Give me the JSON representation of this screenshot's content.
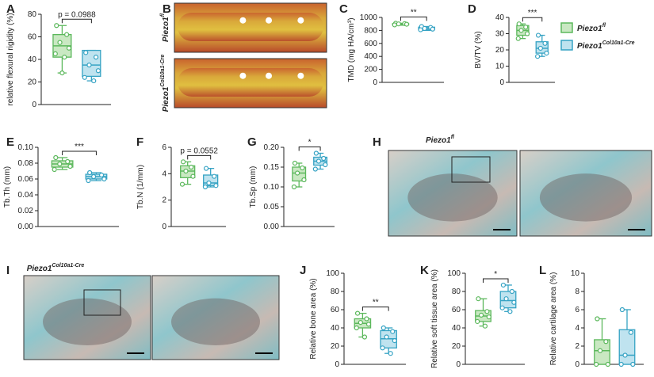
{
  "chart_data": [
    {
      "type": "box",
      "panel": "A",
      "ylabel": "relative flexural rigidity (%)",
      "annotation": "p = 0.0988",
      "ylim": [
        0,
        80
      ],
      "yticks": [
        0,
        20,
        40,
        60,
        80
      ],
      "boxes": [
        {
          "min": 28,
          "q1": 42,
          "median": 52,
          "q3": 62,
          "max": 70,
          "points": [
            70,
            62,
            55,
            50,
            45,
            42,
            28
          ]
        },
        {
          "min": 21,
          "q1": 25,
          "median": 35,
          "q3": 48,
          "max": 48,
          "points": [
            46,
            42,
            35,
            30,
            24,
            21
          ]
        }
      ]
    },
    {
      "type": "box",
      "panel": "C",
      "ylabel": "TMD (mg HA/cm³)",
      "annotation": "**",
      "ylim": [
        0,
        1000
      ],
      "yticks": [
        0,
        200,
        400,
        600,
        800,
        1000
      ],
      "boxes": [
        {
          "min": 880,
          "q1": 885,
          "median": 900,
          "q3": 905,
          "max": 910,
          "points": [
            910,
            905,
            900,
            895,
            885
          ]
        },
        {
          "min": 800,
          "q1": 815,
          "median": 830,
          "q3": 850,
          "max": 860,
          "points": [
            860,
            845,
            830,
            820,
            810
          ]
        }
      ]
    },
    {
      "type": "box",
      "panel": "D",
      "ylabel": "BV/TV (%)",
      "annotation": "***",
      "ylim": [
        0,
        40
      ],
      "yticks": [
        0,
        10,
        20,
        30,
        40
      ],
      "boxes": [
        {
          "min": 27,
          "q1": 29,
          "median": 32,
          "q3": 35,
          "max": 36,
          "points": [
            36,
            34,
            32,
            30,
            27
          ]
        },
        {
          "min": 16,
          "q1": 18,
          "median": 21,
          "q3": 25,
          "max": 29,
          "points": [
            29,
            24,
            21,
            18,
            16
          ]
        }
      ]
    },
    {
      "type": "box",
      "panel": "E",
      "ylabel": "Tb.Th (mm)",
      "annotation": "***",
      "ylim": [
        0,
        0.1
      ],
      "yticks": [
        {
          "value": 0,
          "label": "0.00"
        },
        0.02,
        0.04,
        0.06,
        0.08,
        {
          "value": 0.1,
          "label": "0.10"
        }
      ],
      "boxes": [
        {
          "min": 0.072,
          "q1": 0.075,
          "median": 0.079,
          "q3": 0.083,
          "max": 0.087,
          "points": [
            0.087,
            0.082,
            0.079,
            0.076,
            0.072
          ]
        },
        {
          "min": 0.058,
          "q1": 0.06,
          "median": 0.063,
          "q3": 0.066,
          "max": 0.068,
          "points": [
            0.068,
            0.065,
            0.063,
            0.06,
            0.058
          ]
        }
      ]
    },
    {
      "type": "box",
      "panel": "F",
      "ylabel": "Tb.N (1/mm)",
      "annotation": "p = 0.0552",
      "ylim": [
        0,
        6
      ],
      "yticks": [
        0,
        2,
        4,
        6
      ],
      "boxes": [
        {
          "min": 3.2,
          "q1": 3.7,
          "median": 4.2,
          "q3": 4.6,
          "max": 4.9,
          "points": [
            4.9,
            4.5,
            4.2,
            3.8,
            3.2
          ]
        },
        {
          "min": 3,
          "q1": 3.1,
          "median": 3.3,
          "q3": 3.9,
          "max": 4.4,
          "points": [
            4.4,
            3.8,
            3.3,
            3.1,
            3
          ]
        }
      ]
    },
    {
      "type": "box",
      "panel": "G",
      "ylabel": "Tb.Sp (mm)",
      "annotation": "*",
      "ylim": [
        0,
        0.2
      ],
      "yticks": [
        {
          "value": 0,
          "label": "0.00"
        },
        0.05,
        {
          "value": 0.1,
          "label": "0.10"
        },
        0.15,
        {
          "value": 0.2,
          "label": "0.20"
        }
      ],
      "boxes": [
        {
          "min": 0.1,
          "q1": 0.115,
          "median": 0.135,
          "q3": 0.15,
          "max": 0.16,
          "points": [
            0.16,
            0.148,
            0.135,
            0.118,
            0.1
          ]
        },
        {
          "min": 0.145,
          "q1": 0.155,
          "median": 0.165,
          "q3": 0.175,
          "max": 0.185,
          "points": [
            0.185,
            0.172,
            0.165,
            0.156,
            0.145
          ]
        }
      ]
    },
    {
      "type": "box",
      "panel": "J",
      "ylabel": "Relative bone area (%)",
      "annotation": "**",
      "ylim": [
        0,
        100
      ],
      "yticks": [
        0,
        20,
        40,
        60,
        80,
        100
      ],
      "boxes": [
        {
          "min": 30,
          "q1": 40,
          "median": 45,
          "q3": 50,
          "max": 56,
          "points": [
            56,
            50,
            46,
            44,
            40,
            30
          ]
        },
        {
          "min": 12,
          "q1": 18,
          "median": 28,
          "q3": 37,
          "max": 40,
          "points": [
            40,
            36,
            30,
            26,
            18,
            12
          ]
        }
      ]
    },
    {
      "type": "box",
      "panel": "K",
      "ylabel": "Relative soft tissue area (%)",
      "annotation": "*",
      "ylim": [
        0,
        100
      ],
      "yticks": [
        0,
        20,
        40,
        60,
        80,
        100
      ],
      "boxes": [
        {
          "min": 42,
          "q1": 47,
          "median": 53,
          "q3": 59,
          "max": 72,
          "points": [
            72,
            58,
            54,
            52,
            47,
            42
          ]
        },
        {
          "min": 58,
          "q1": 62,
          "median": 70,
          "q3": 80,
          "max": 87,
          "points": [
            87,
            80,
            72,
            68,
            62,
            58
          ]
        }
      ]
    },
    {
      "type": "box",
      "panel": "L",
      "ylabel": "Relative cartilage area (%)",
      "ylim": [
        0,
        10
      ],
      "yticks": [
        0,
        2,
        4,
        6,
        8,
        10
      ],
      "boxes": [
        {
          "min": 0,
          "q1": 0,
          "median": 1.5,
          "q3": 2.7,
          "max": 5,
          "points": [
            5,
            2.5,
            1.5,
            0,
            0
          ]
        },
        {
          "min": 0,
          "q1": 0,
          "median": 1,
          "q3": 3.8,
          "max": 6,
          "points": [
            6,
            3.5,
            1,
            0,
            0
          ]
        }
      ]
    }
  ],
  "legend": [
    {
      "name": "Piezo1",
      "sup": "fl",
      "color": "#5cb85c",
      "fill": "#c9e8c2"
    },
    {
      "name": "Piezo1",
      "sup": "Col10a1-Cre",
      "color": "#36a3c4",
      "fill": "#bfe3ef"
    }
  ],
  "images": [
    {
      "panel": "B",
      "labels": [
        {
          "name": "Piezo1",
          "sup": "fl"
        },
        {
          "name": "Piezo1",
          "sup": "Col10a1-Cre"
        }
      ]
    },
    {
      "panel": "H",
      "labels": [
        {
          "name": "Piezo1",
          "sup": "fl"
        }
      ]
    },
    {
      "panel": "I",
      "labels": [
        {
          "name": "Piezo1",
          "sup": "Col10a1-Cre"
        }
      ]
    }
  ]
}
